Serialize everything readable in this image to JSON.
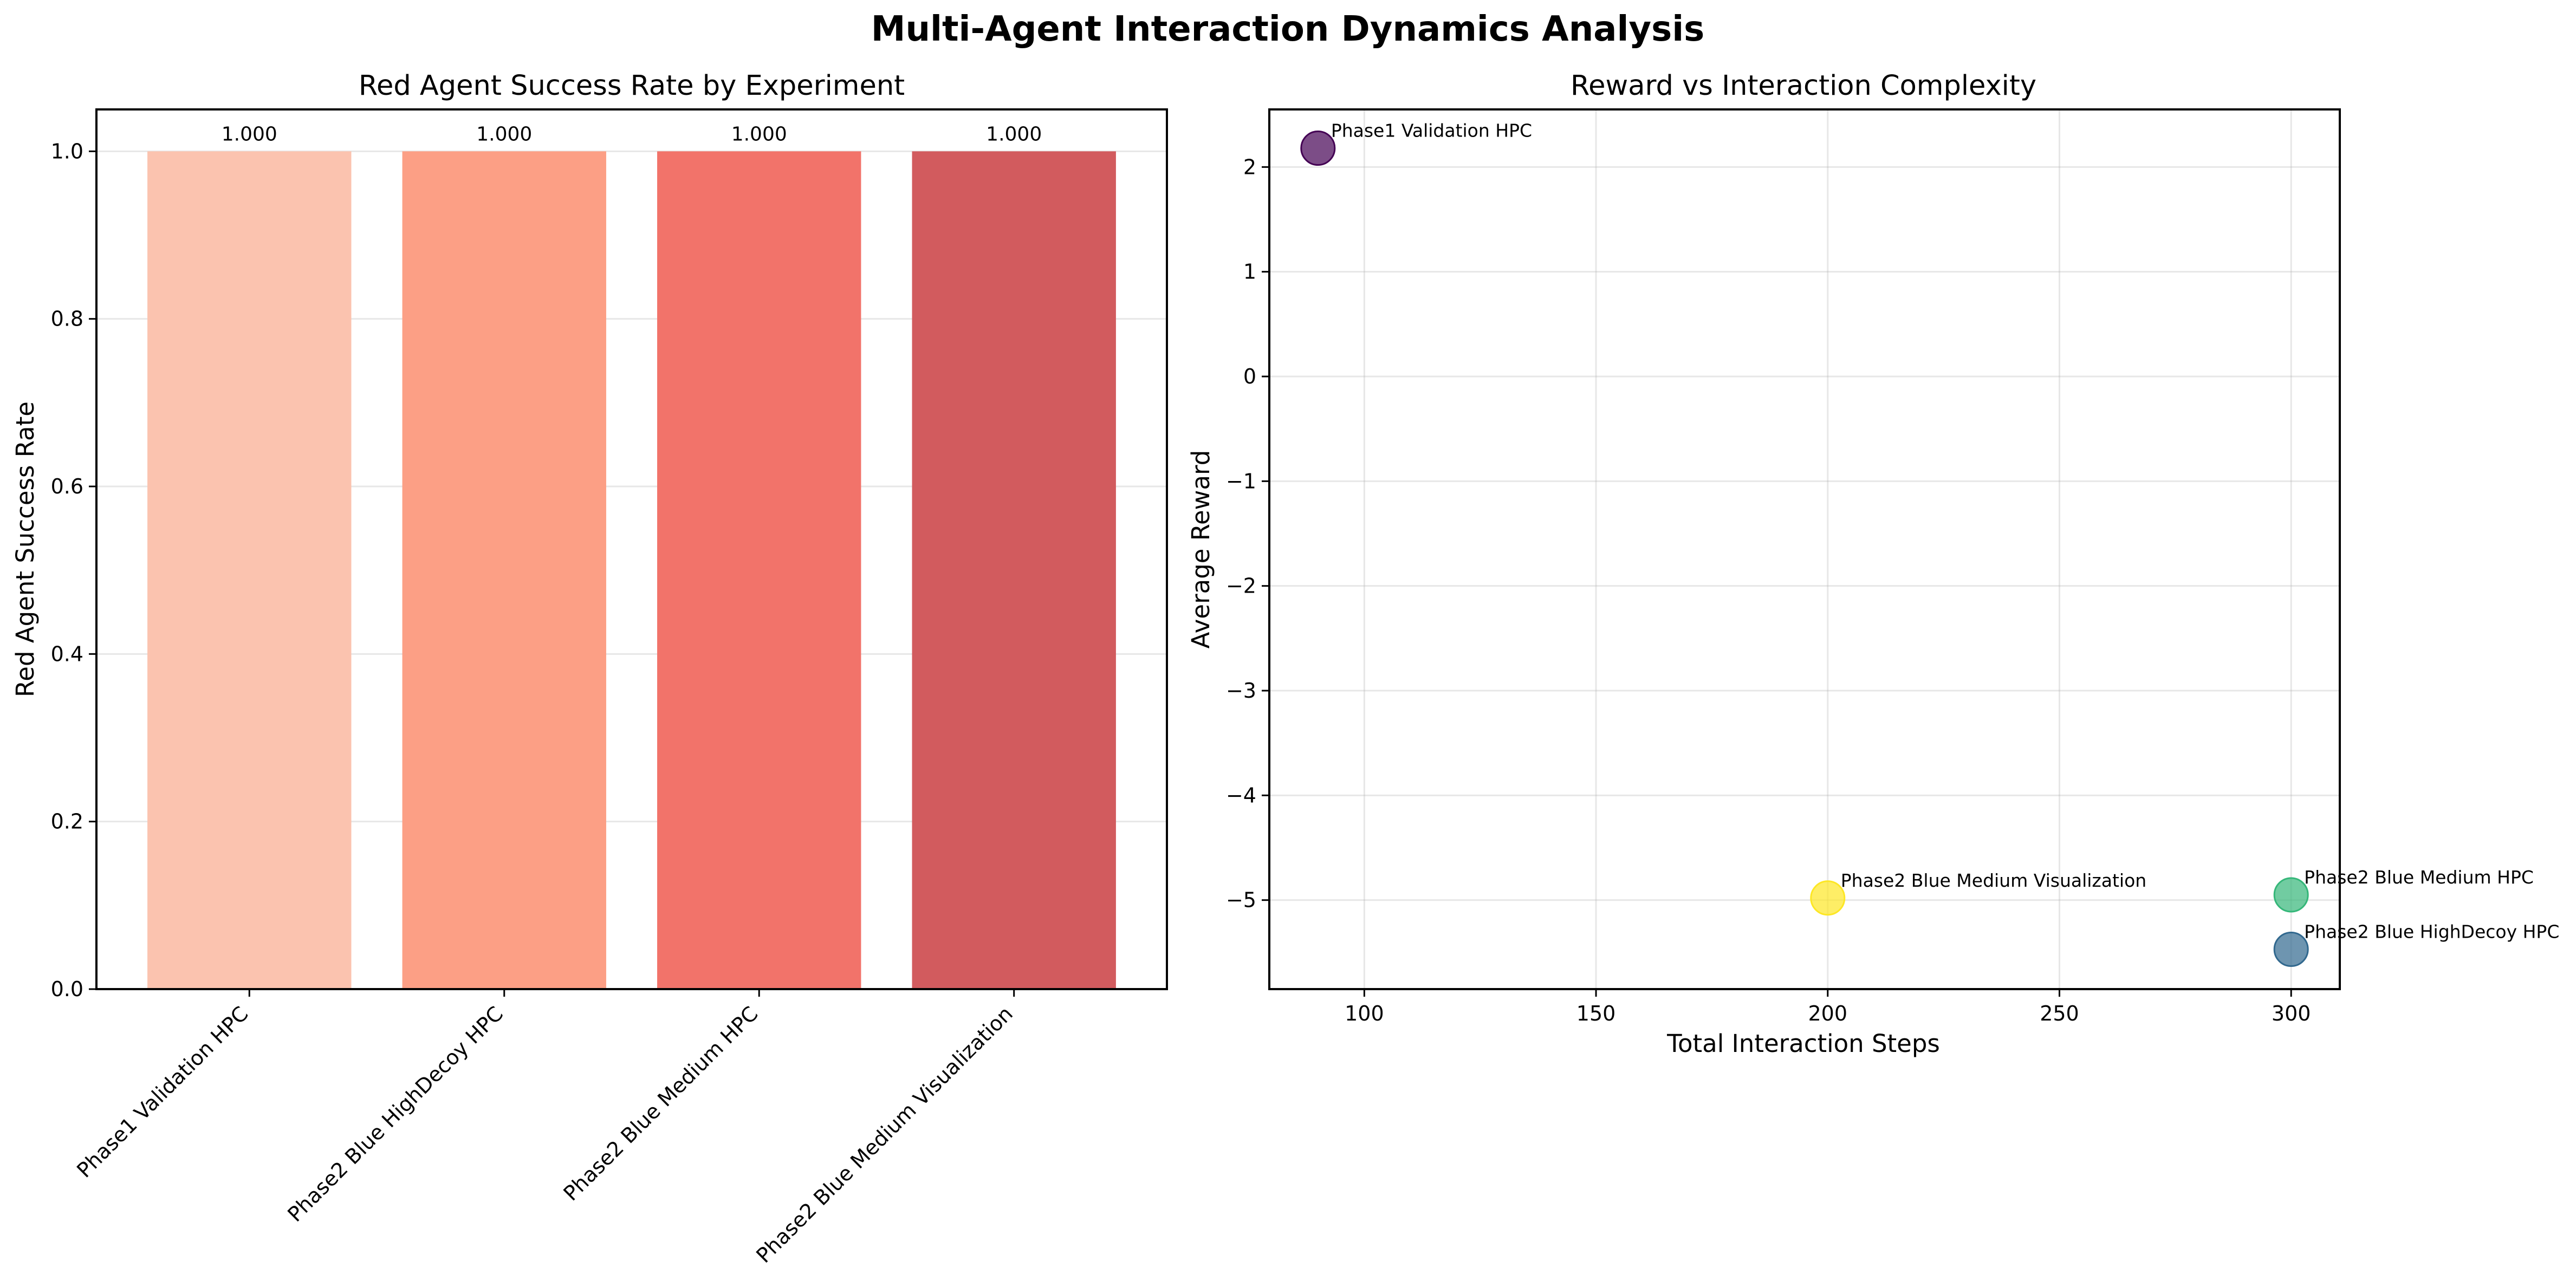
{
  "figure": {
    "title": "Multi-Agent Interaction Dynamics Analysis"
  },
  "chart_data": [
    {
      "type": "bar",
      "title": "Red Agent Success Rate by Experiment",
      "xlabel": "",
      "ylabel": "Red Agent Success Rate",
      "categories": [
        "Phase1 Validation HPC",
        "Phase2 Blue HighDecoy HPC",
        "Phase2 Blue Medium HPC",
        "Phase2 Blue Medium Visualization"
      ],
      "values": [
        1.0,
        1.0,
        1.0,
        1.0
      ],
      "value_labels": [
        "1.000",
        "1.000",
        "1.000",
        "1.000"
      ],
      "colors": [
        "#fbc3af",
        "#fc9f85",
        "#f2736a",
        "#d25b5e"
      ],
      "ylim": [
        0,
        1.05
      ],
      "yticks": [
        0.0,
        0.2,
        0.4,
        0.6,
        0.8,
        1.0
      ],
      "ytick_labels": [
        "0.0",
        "0.2",
        "0.4",
        "0.6",
        "0.8",
        "1.0"
      ],
      "grid": true,
      "xtick_rotation": 45
    },
    {
      "type": "scatter",
      "title": "Reward vs Interaction Complexity",
      "xlabel": "Total Interaction Steps",
      "ylabel": "Average Reward",
      "points": [
        {
          "label": "Phase1 Validation HPC",
          "x": 90,
          "y": 2.18,
          "color": "#440154"
        },
        {
          "label": "Phase2 Blue HighDecoy HPC",
          "x": 300,
          "y": -5.47,
          "color": "#31688e"
        },
        {
          "label": "Phase2 Blue Medium HPC",
          "x": 300,
          "y": -4.95,
          "color": "#35b779"
        },
        {
          "label": "Phase2 Blue Medium Visualization",
          "x": 200,
          "y": -4.98,
          "color": "#fde725"
        }
      ],
      "xlim": [
        79.5,
        310.5
      ],
      "ylim": [
        -5.85,
        2.55
      ],
      "xticks": [
        100,
        150,
        200,
        250,
        300
      ],
      "xtick_labels": [
        "100",
        "150",
        "200",
        "250",
        "300"
      ],
      "yticks": [
        -5,
        -4,
        -3,
        -2,
        -1,
        0,
        1,
        2
      ],
      "ytick_labels": [
        "−5",
        "−4",
        "−3",
        "−2",
        "−1",
        "0",
        "1",
        "2"
      ],
      "grid": true,
      "marker_alpha": 0.7
    }
  ]
}
